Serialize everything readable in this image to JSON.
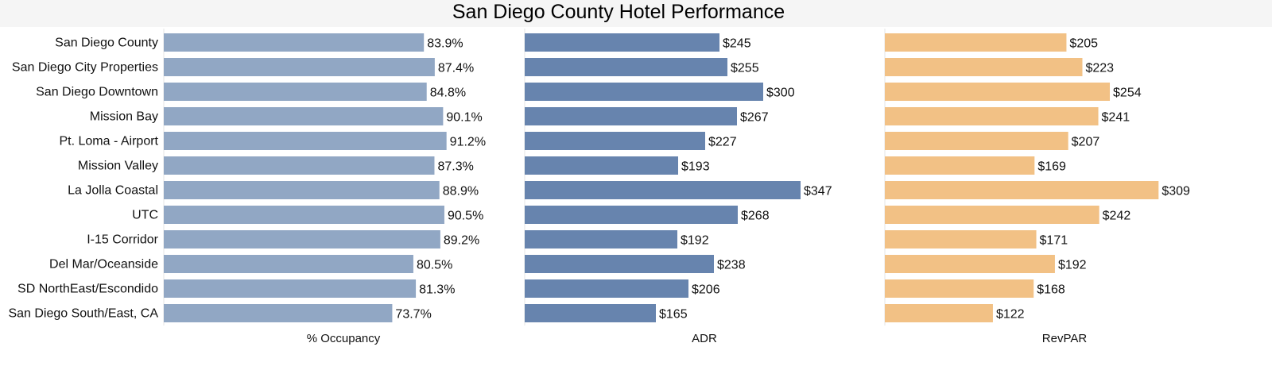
{
  "chart_data": {
    "type": "bar",
    "orientation": "horizontal",
    "title": "San Diego County Hotel Performance",
    "categories": [
      "San Diego County",
      "San Diego City Properties",
      "San Diego Downtown",
      "Mission Bay",
      "Pt. Loma - Airport",
      "Mission Valley",
      "La Jolla Coastal",
      "UTC",
      "I-15 Corridor",
      "Del Mar/Oceanside",
      "SD NorthEast/Escondido",
      "San Diego South/East, CA"
    ],
    "series": [
      {
        "name": "% Occupancy",
        "values": [
          83.9,
          87.4,
          84.8,
          90.1,
          91.2,
          87.3,
          88.9,
          90.5,
          89.2,
          80.5,
          81.3,
          73.7
        ],
        "labels": [
          "83.9%",
          "87.4%",
          "84.8%",
          "90.1%",
          "91.2%",
          "87.3%",
          "88.9%",
          "90.5%",
          "89.2%",
          "80.5%",
          "81.3%",
          "73.7%"
        ],
        "xlim": [
          0,
          100
        ],
        "color": "#91a7c4"
      },
      {
        "name": "ADR",
        "values": [
          245,
          255,
          300,
          267,
          227,
          193,
          347,
          268,
          192,
          238,
          206,
          165
        ],
        "labels": [
          "$245",
          "$255",
          "$300",
          "$267",
          "$227",
          "$193",
          "$347",
          "$268",
          "$192",
          "$238",
          "$206",
          "$165"
        ],
        "xlim": [
          0,
          390
        ],
        "color": "#6784ae"
      },
      {
        "name": "RevPAR",
        "values": [
          205,
          223,
          254,
          241,
          207,
          169,
          309,
          242,
          171,
          192,
          168,
          122
        ],
        "labels": [
          "$205",
          "$223",
          "$254",
          "$241",
          "$207",
          "$169",
          "$309",
          "$242",
          "$171",
          "$192",
          "$168",
          "$122"
        ],
        "xlim": [
          0,
          350
        ],
        "color": "#f2c185"
      }
    ],
    "colors": {
      "title_band": "#f5f5f5",
      "panel_divider": "#e6e6e6"
    }
  }
}
